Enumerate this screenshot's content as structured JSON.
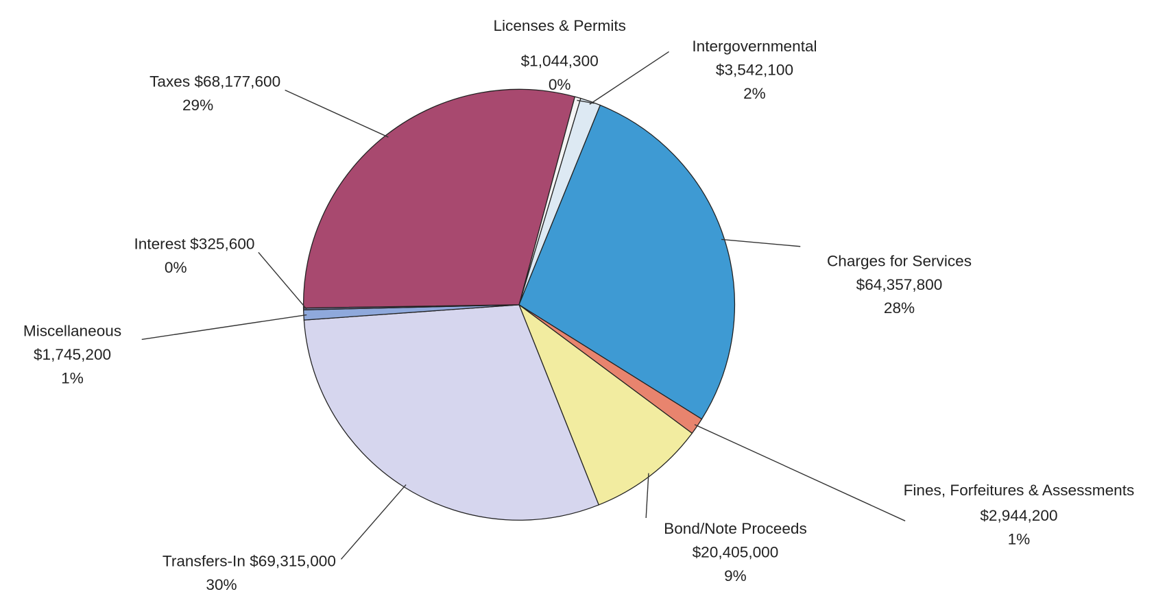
{
  "chart_data": {
    "type": "pie",
    "categories": [
      "Licenses & Permits",
      "Intergovernmental",
      "Charges for Services",
      "Fines, Forfeitures & Assessments",
      "Bond/Note Proceeds",
      "Transfers-In",
      "Miscellaneous",
      "Interest",
      "Taxes"
    ],
    "values": [
      1044300,
      3542100,
      64357800,
      2944200,
      20405000,
      69315000,
      1745200,
      325600,
      68177600
    ],
    "value_labels": [
      "$1,044,300",
      "$3,542,100",
      "$64,357,800",
      "$2,944,200",
      "$20,405,000",
      "$69,315,000",
      "$1,745,200",
      "$325,600",
      "$68,177,600"
    ],
    "percent_labels": [
      "0%",
      "2%",
      "28%",
      "1%",
      "9%",
      "30%",
      "1%",
      "0%",
      "29%"
    ],
    "colors": [
      "#f4f4f4",
      "#dde9f3",
      "#3e9ad3",
      "#e8846e",
      "#f2eca0",
      "#d6d6ee",
      "#8fa9dc",
      "#6e6e92",
      "#a8496f"
    ]
  }
}
